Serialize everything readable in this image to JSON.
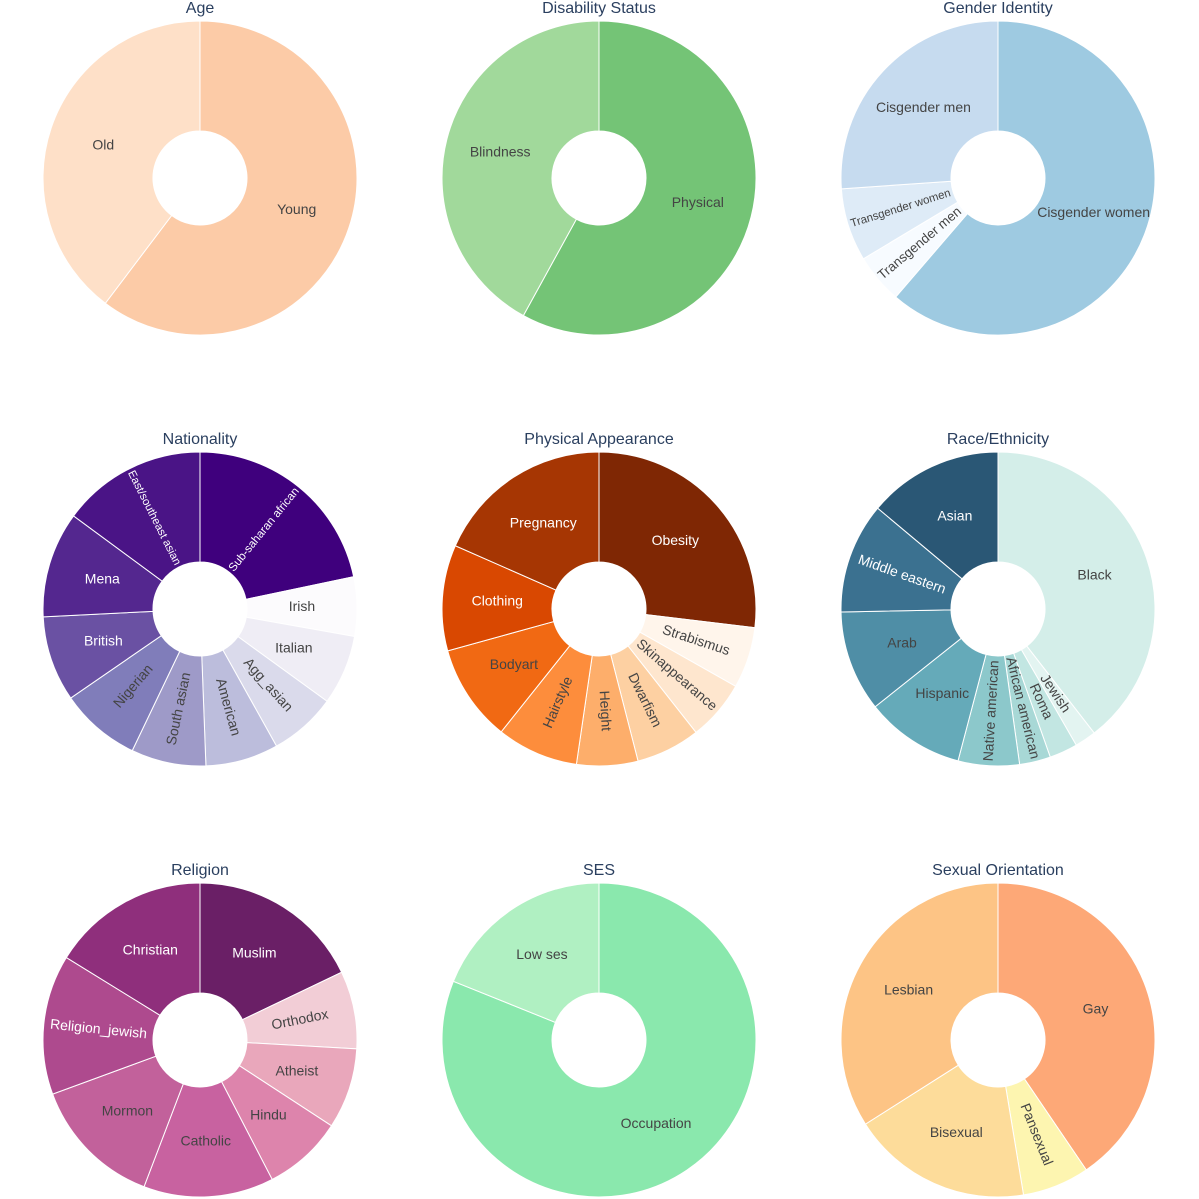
{
  "chart_data": [
    {
      "type": "pie",
      "title": "Age",
      "categories": [
        "Young",
        "Old"
      ],
      "values": [
        60.3,
        39.7
      ],
      "colors": [
        "#fccba7",
        "#fee0c8"
      ]
    },
    {
      "type": "pie",
      "title": "Disability Status",
      "categories": [
        "Physical",
        "Blindness"
      ],
      "values": [
        58,
        42
      ],
      "colors": [
        "#74c476",
        "#a1d99b"
      ]
    },
    {
      "type": "pie",
      "title": "Gender Identity",
      "categories": [
        "Cisgender women",
        "Transgender men",
        "Transgender women",
        "Cisgender men"
      ],
      "values": [
        61.3,
        5.1,
        7.5,
        26.1
      ],
      "colors": [
        "#9ecae1",
        "#f7fbff",
        "#deebf7",
        "#c6dbef"
      ]
    },
    {
      "type": "pie",
      "title": "Nationality",
      "categories": [
        "Sub-saharan african",
        "Irish",
        "Italian",
        "Agg_asian",
        "American",
        "South asian",
        "Nigerian",
        "British",
        "Mena",
        "East/southeast asian"
      ],
      "values": [
        21.7,
        6.1,
        7.2,
        6.9,
        7.5,
        7.7,
        8.3,
        8.8,
        10.9,
        14.9
      ],
      "colors": [
        "#3f007d",
        "#fcfbfd",
        "#efedf5",
        "#dadaeb",
        "#bcbddc",
        "#9e9ac8",
        "#807dba",
        "#6a51a3",
        "#54278f",
        "#4a1486"
      ]
    },
    {
      "type": "pie",
      "title": "Physical Appearance",
      "categories": [
        "Obesity",
        "Strabismus",
        "Skinappearance",
        "Dwarfism",
        "Height",
        "Hairstyle",
        "Bodyart",
        "Clothing",
        "Pregnancy"
      ],
      "values": [
        26.9,
        6.3,
        6.2,
        6.6,
        6.3,
        8.4,
        10,
        10.9,
        18.4
      ],
      "colors": [
        "#7f2704",
        "#fff5eb",
        "#fee6ce",
        "#fdd0a2",
        "#fdae6b",
        "#fd8d3c",
        "#f16913",
        "#d94801",
        "#a63603"
      ]
    },
    {
      "type": "pie",
      "title": "Race/Ethnicity",
      "categories": [
        "Black",
        "Jewish",
        "Roma",
        "African american",
        "Native american",
        "Hispanic",
        "Arab",
        "Middle eastern",
        "Asian"
      ],
      "values": [
        39.5,
        2.2,
        2.9,
        3.2,
        6.3,
        10.2,
        10.4,
        11.4,
        13.9
      ],
      "colors": [
        "#d4eee9",
        "#e3f4f1",
        "#c2e6e2",
        "#a8d8d6",
        "#8cc8cb",
        "#65aab9",
        "#4f8ea6",
        "#3b7190",
        "#2a5775"
      ]
    },
    {
      "type": "pie",
      "title": "Religion",
      "categories": [
        "Muslim",
        "Orthodox",
        "Atheist",
        "Hindu",
        "Catholic",
        "Mormon",
        "Religion_jewish",
        "Christian"
      ],
      "values": [
        17.9,
        8,
        8.3,
        8.2,
        13.4,
        13.6,
        14.4,
        16.2
      ],
      "colors": [
        "#6a1f66",
        "#f2cdd6",
        "#e9a7bb",
        "#dd84ac",
        "#c862a0",
        "#c2619b",
        "#ae4a8e",
        "#8f2f7c"
      ]
    },
    {
      "type": "pie",
      "title": "SES",
      "categories": [
        "Occupation",
        "Low ses"
      ],
      "values": [
        81.1,
        18.9
      ],
      "colors": [
        "#8ae8ad",
        "#b0f0c2"
      ]
    },
    {
      "type": "pie",
      "title": "Sexual Orientation",
      "categories": [
        "Gay",
        "Pansexual",
        "Bisexual",
        "Lesbian"
      ],
      "values": [
        40.5,
        6.9,
        18.6,
        34
      ],
      "colors": [
        "#fda877",
        "#fdf5b0",
        "#fddc9a",
        "#fdc485"
      ]
    }
  ]
}
